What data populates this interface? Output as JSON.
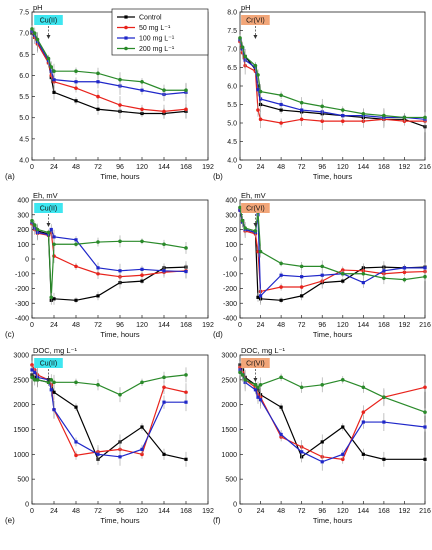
{
  "legend": [
    "Control",
    "50 mg L⁻¹",
    "100 mg L⁻¹",
    "200 mg L⁻¹"
  ],
  "colors": [
    "#000000",
    "#e8231c",
    "#1f27c9",
    "#2a8a2a"
  ],
  "chart_data": [
    {
      "type": "line",
      "panel": "(a)",
      "ylabel": "pH",
      "xlabel": "Time, hours",
      "xlim": [
        0,
        192
      ],
      "ylim": [
        4.0,
        7.5
      ],
      "xticks": [
        0,
        24,
        48,
        72,
        96,
        120,
        144,
        168,
        192
      ],
      "yticks": [
        4.0,
        4.5,
        5.0,
        5.5,
        6.0,
        6.5,
        7.0,
        7.5
      ],
      "annotation": {
        "text": "Cu(II)",
        "x": 18,
        "style": "cyan"
      },
      "x": [
        0,
        3,
        6,
        18,
        21,
        24,
        48,
        72,
        96,
        120,
        144,
        168
      ],
      "series": [
        {
          "name": "Control",
          "values": [
            7.0,
            6.9,
            6.75,
            6.3,
            5.95,
            5.6,
            5.4,
            5.2,
            5.15,
            5.1,
            5.1,
            5.15
          ]
        },
        {
          "name": "50 mg L⁻¹",
          "values": [
            7.05,
            6.9,
            6.75,
            6.3,
            6.0,
            5.85,
            5.7,
            5.5,
            5.3,
            5.2,
            5.15,
            5.2
          ]
        },
        {
          "name": "100 mg L⁻¹",
          "values": [
            7.05,
            6.95,
            6.8,
            6.35,
            6.1,
            5.9,
            5.85,
            5.85,
            5.75,
            5.65,
            5.55,
            5.6
          ]
        },
        {
          "name": "200 mg L⁻¹",
          "values": [
            7.1,
            7.0,
            6.85,
            6.4,
            6.2,
            6.1,
            6.1,
            6.05,
            5.9,
            5.85,
            5.65,
            5.65
          ]
        }
      ]
    },
    {
      "type": "line",
      "panel": "(b)",
      "ylabel": "pH",
      "xlabel": "Time, hours",
      "xlim": [
        0,
        216
      ],
      "ylim": [
        4.0,
        8.0
      ],
      "xticks": [
        0,
        24,
        48,
        72,
        96,
        120,
        144,
        168,
        192,
        216
      ],
      "yticks": [
        4.0,
        4.5,
        5.0,
        5.5,
        6.0,
        6.5,
        7.0,
        7.5,
        8.0
      ],
      "annotation": {
        "text": "Cr(VI)",
        "x": 18,
        "style": "orange"
      },
      "x": [
        0,
        3,
        6,
        18,
        21,
        24,
        48,
        72,
        96,
        120,
        144,
        168,
        192,
        216
      ],
      "series": [
        {
          "name": "Control",
          "values": [
            7.25,
            7.0,
            6.8,
            6.45,
            6.0,
            5.5,
            5.35,
            5.3,
            5.25,
            5.2,
            5.15,
            5.1,
            5.1,
            4.9
          ]
        },
        {
          "name": "50 mg L⁻¹",
          "values": [
            7.2,
            6.9,
            6.55,
            6.4,
            5.35,
            5.1,
            5.0,
            5.1,
            5.05,
            5.05,
            5.05,
            5.1,
            5.05,
            5.05
          ]
        },
        {
          "name": "100 mg L⁻¹",
          "values": [
            7.25,
            7.0,
            6.7,
            6.5,
            5.9,
            5.65,
            5.5,
            5.35,
            5.3,
            5.2,
            5.2,
            5.15,
            5.15,
            5.1
          ]
        },
        {
          "name": "200 mg L⁻¹",
          "values": [
            7.3,
            7.05,
            6.8,
            6.55,
            6.3,
            5.85,
            5.75,
            5.55,
            5.45,
            5.35,
            5.25,
            5.2,
            5.15,
            5.15
          ]
        }
      ]
    },
    {
      "type": "line",
      "panel": "(c)",
      "ylabel": "Eh, mV",
      "xlabel": "Time, hours",
      "xlim": [
        0,
        192
      ],
      "ylim": [
        -400,
        400
      ],
      "xticks": [
        0,
        24,
        48,
        72,
        96,
        120,
        144,
        168,
        192
      ],
      "yticks": [
        -400,
        -300,
        -200,
        -100,
        0,
        100,
        200,
        300,
        400
      ],
      "annotation": {
        "text": "Cu(II)",
        "x": 18,
        "style": "cyan"
      },
      "x": [
        0,
        3,
        6,
        18,
        21,
        24,
        48,
        72,
        96,
        120,
        144,
        168
      ],
      "series": [
        {
          "name": "Control",
          "values": [
            240,
            210,
            190,
            170,
            -280,
            -270,
            -280,
            -250,
            -160,
            -150,
            -60,
            -55
          ]
        },
        {
          "name": "50 mg L⁻¹",
          "values": [
            240,
            200,
            175,
            160,
            180,
            20,
            -50,
            -100,
            -120,
            -110,
            -90,
            -80
          ]
        },
        {
          "name": "100 mg L⁻¹",
          "values": [
            250,
            210,
            180,
            165,
            200,
            150,
            130,
            -60,
            -80,
            -70,
            -80,
            -85
          ]
        },
        {
          "name": "200 mg L⁻¹",
          "values": [
            260,
            230,
            200,
            180,
            -260,
            100,
            100,
            115,
            120,
            120,
            100,
            75
          ]
        }
      ]
    },
    {
      "type": "line",
      "panel": "(d)",
      "ylabel": "Eh, mV",
      "xlabel": "Time, hours",
      "xlim": [
        0,
        216
      ],
      "ylim": [
        -400,
        400
      ],
      "xticks": [
        0,
        24,
        48,
        72,
        96,
        120,
        144,
        168,
        192,
        216
      ],
      "yticks": [
        -400,
        -300,
        -200,
        -100,
        0,
        100,
        200,
        300,
        400
      ],
      "annotation": {
        "text": "Cr(VI)",
        "x": 18,
        "style": "orange"
      },
      "x": [
        0,
        3,
        6,
        18,
        21,
        24,
        48,
        72,
        96,
        120,
        144,
        168,
        192,
        216
      ],
      "series": [
        {
          "name": "Control",
          "values": [
            340,
            260,
            200,
            180,
            -260,
            -270,
            -280,
            -250,
            -160,
            -150,
            -60,
            -55,
            -60,
            -55
          ]
        },
        {
          "name": "50 mg L⁻¹",
          "values": [
            330,
            250,
            190,
            170,
            50,
            -220,
            -190,
            -190,
            -150,
            -75,
            -80,
            -100,
            -90,
            -85
          ]
        },
        {
          "name": "100 mg L⁻¹",
          "values": [
            330,
            250,
            200,
            180,
            300,
            -250,
            -110,
            -120,
            -110,
            -100,
            -160,
            -80,
            -60,
            -60
          ]
        },
        {
          "name": "200 mg L⁻¹",
          "values": [
            350,
            260,
            210,
            190,
            320,
            50,
            -30,
            -50,
            -50,
            -100,
            -100,
            -130,
            -140,
            -120
          ]
        }
      ]
    },
    {
      "type": "line",
      "panel": "(e)",
      "ylabel": "DOC, mg L⁻¹",
      "xlabel": "Time, hours",
      "xlim": [
        0,
        192
      ],
      "ylim": [
        0,
        3000
      ],
      "xticks": [
        0,
        24,
        48,
        72,
        96,
        120,
        144,
        168,
        192
      ],
      "yticks": [
        0,
        500,
        1000,
        1500,
        2000,
        2500,
        3000
      ],
      "annotation": {
        "text": "Cu(II)",
        "x": 18,
        "style": "cyan"
      },
      "x": [
        0,
        3,
        6,
        18,
        21,
        24,
        48,
        72,
        96,
        120,
        144,
        168
      ],
      "series": [
        {
          "name": "Control",
          "values": [
            2600,
            2550,
            2500,
            2450,
            2400,
            2250,
            1950,
            900,
            1250,
            1550,
            1000,
            900
          ]
        },
        {
          "name": "50 mg L⁻¹",
          "values": [
            2800,
            2700,
            2600,
            2500,
            2400,
            1900,
            980,
            1050,
            1100,
            1000,
            2350,
            2250
          ]
        },
        {
          "name": "100 mg L⁻¹",
          "values": [
            2700,
            2650,
            2550,
            2500,
            2300,
            1900,
            1250,
            1000,
            950,
            1100,
            2050,
            2050
          ]
        },
        {
          "name": "200 mg L⁻¹",
          "values": [
            2550,
            2500,
            2500,
            2450,
            2500,
            2450,
            2450,
            2400,
            2200,
            2450,
            2550,
            2600
          ]
        }
      ]
    },
    {
      "type": "line",
      "panel": "(f)",
      "ylabel": "DOC, mg L⁻¹",
      "xlabel": "Time, hours",
      "xlim": [
        0,
        216
      ],
      "ylim": [
        0,
        3000
      ],
      "xticks": [
        0,
        24,
        48,
        72,
        96,
        120,
        144,
        168,
        192,
        216
      ],
      "yticks": [
        0,
        500,
        1000,
        1500,
        2000,
        2500,
        3000
      ],
      "annotation": {
        "text": "Cr(VI)",
        "x": 18,
        "style": "orange"
      },
      "x": [
        0,
        3,
        6,
        18,
        21,
        24,
        48,
        72,
        96,
        120,
        144,
        168,
        216
      ],
      "series": [
        {
          "name": "Control",
          "values": [
            2800,
            2700,
            2550,
            2400,
            2300,
            2200,
            1950,
            950,
            1250,
            1550,
            1000,
            900,
            900
          ]
        },
        {
          "name": "50 mg L⁻¹",
          "values": [
            2750,
            2650,
            2500,
            2350,
            2200,
            2150,
            1350,
            1150,
            950,
            900,
            1850,
            2150,
            2350
          ]
        },
        {
          "name": "100 mg L⁻¹",
          "values": [
            2700,
            2600,
            2450,
            2300,
            2150,
            2100,
            1400,
            1050,
            850,
            1000,
            1650,
            1650,
            1550
          ]
        },
        {
          "name": "200 mg L⁻¹",
          "values": [
            2650,
            2600,
            2500,
            2400,
            2350,
            2400,
            2550,
            2350,
            2400,
            2500,
            2350,
            2150,
            1850
          ]
        }
      ]
    }
  ]
}
